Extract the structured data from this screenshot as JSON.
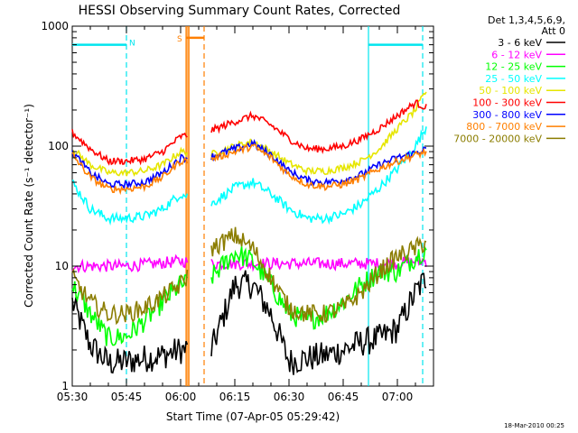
{
  "chart_data": {
    "type": "line",
    "title": "HESSI Observing Summary Count Rates, Corrected",
    "xlabel": "Start Time (07-Apr-05 05:29:42)",
    "ylabel": "Corrected Count Rate (s⁻¹ detector⁻¹)",
    "ylim": [
      1,
      1000
    ],
    "xlim_minutes": [
      0,
      100
    ],
    "y_scale": "log",
    "x_ticks": [
      "05:30",
      "05:45",
      "06:00",
      "06:15",
      "06:30",
      "06:45",
      "07:00"
    ],
    "x_tick_minutes": [
      0,
      15,
      30,
      45,
      60,
      75,
      90
    ],
    "y_ticks": [
      "1",
      "10",
      "100",
      "1000"
    ],
    "y_tick_values": [
      1,
      10,
      100,
      1000
    ],
    "timestamp": "18-Mar-2010 00:25",
    "legend": {
      "header": [
        "Det 1,3,4,5,6,9,",
        "Att 0"
      ],
      "placement": "right"
    },
    "annotations": [
      {
        "label": "N",
        "color": "#00e5ee"
      },
      {
        "label": "S",
        "color": "#ff7f00"
      }
    ],
    "bars": [
      {
        "label": "N",
        "start_minute": 0,
        "end_minute": 15,
        "value": 700,
        "color": "#00e5ee"
      },
      {
        "label": "N",
        "start_minute": 82,
        "end_minute": 97,
        "value": 700,
        "color": "#00e5ee"
      },
      {
        "label": "S",
        "start_minute": 31.5,
        "end_minute": 36.5,
        "value": 800,
        "color": "#ff7f00"
      }
    ],
    "vlines": [
      {
        "minute": 15,
        "style": "dashed",
        "color": "#00e5ee"
      },
      {
        "minute": 82,
        "style": "solid",
        "color": "#00e5ee"
      },
      {
        "minute": 97,
        "style": "dashed",
        "color": "#00e5ee"
      },
      {
        "minute": 31.5,
        "style": "solid",
        "color": "#ff7f00"
      },
      {
        "minute": 32.3,
        "style": "solid",
        "color": "#ff7f00"
      },
      {
        "minute": 36.5,
        "style": "dashed",
        "color": "#ff7f00"
      }
    ],
    "gap_minutes": [
      32,
      38.5
    ],
    "x_minutes": [
      0,
      5,
      10,
      15,
      20,
      25,
      30,
      38.5,
      45,
      50,
      55,
      60,
      65,
      70,
      75,
      80,
      85,
      90,
      95,
      98
    ],
    "series": [
      {
        "name": "3 - 6 keV",
        "color": "#000000",
        "values": [
          5,
          2.2,
          1.55,
          1.6,
          1.7,
          1.8,
          2,
          2,
          7,
          7,
          4,
          1.6,
          1.7,
          1.8,
          2,
          2.3,
          2.5,
          3,
          6,
          8
        ]
      },
      {
        "name": "6 - 12 keV",
        "color": "#ff00ff",
        "values": [
          10,
          10,
          10,
          10,
          10.3,
          10.6,
          11,
          10.5,
          10.5,
          10.5,
          10.5,
          10.5,
          10.5,
          10.5,
          10.5,
          10.5,
          10.5,
          10.5,
          11,
          11
        ]
      },
      {
        "name": "12 - 25 keV",
        "color": "#00ff00",
        "values": [
          7,
          4,
          2.5,
          2.6,
          3.5,
          5,
          7,
          8,
          13,
          11,
          7,
          4,
          3.5,
          4,
          5,
          7,
          9,
          9,
          12,
          14
        ]
      },
      {
        "name": "25 - 50 keV",
        "color": "#00ffff",
        "values": [
          50,
          30,
          25,
          25,
          26,
          30,
          40,
          33,
          45,
          50,
          40,
          30,
          25,
          25,
          27,
          33,
          45,
          65,
          100,
          145
        ]
      },
      {
        "name": "50 - 100 keV",
        "color": "#e6e600",
        "values": [
          95,
          70,
          60,
          60,
          62,
          70,
          90,
          85,
          100,
          110,
          90,
          72,
          62,
          62,
          66,
          75,
          95,
          140,
          200,
          290
        ]
      },
      {
        "name": "100 - 300 keV",
        "color": "#ff0000",
        "values": [
          130,
          95,
          75,
          75,
          78,
          90,
          120,
          135,
          160,
          180,
          150,
          115,
          95,
          95,
          100,
          115,
          140,
          180,
          230,
          210
        ]
      },
      {
        "name": "300 - 800 keV",
        "color": "#0000ff",
        "values": [
          90,
          60,
          48,
          48,
          50,
          60,
          80,
          82,
          95,
          105,
          85,
          62,
          52,
          50,
          52,
          58,
          70,
          80,
          88,
          95
        ]
      },
      {
        "name": "800 - 7000 keV",
        "color": "#ff7f00",
        "values": [
          85,
          55,
          44,
          44,
          46,
          55,
          75,
          78,
          90,
          100,
          80,
          58,
          48,
          46,
          48,
          54,
          65,
          75,
          84,
          90
        ]
      },
      {
        "name": "7000 - 20000 keV",
        "color": "#8b7d00",
        "values": [
          8,
          5,
          4,
          4,
          4.5,
          5.5,
          7,
          14,
          18,
          14,
          8,
          4.5,
          4,
          4,
          4.5,
          6,
          9,
          12,
          14,
          16
        ]
      }
    ]
  }
}
